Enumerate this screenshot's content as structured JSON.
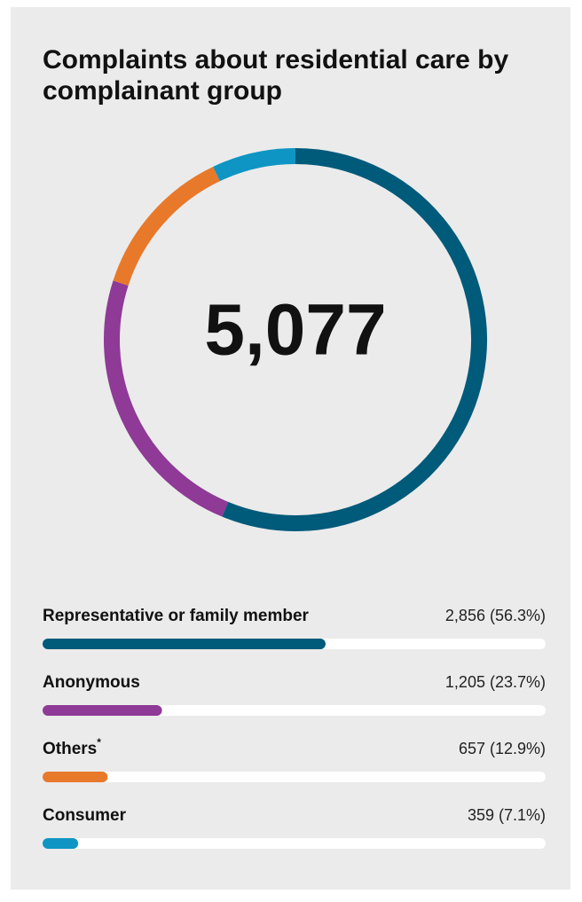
{
  "chart_data": {
    "type": "donut",
    "title": "Complaints about residential care by complainant group",
    "total": {
      "value": 5077,
      "label": "5,077"
    },
    "categories": [
      "Representative or family member",
      "Anonymous",
      "Others",
      "Consumer"
    ],
    "category_notes": [
      null,
      null,
      "*",
      null
    ],
    "values": [
      2856,
      1205,
      657,
      359
    ],
    "value_labels": [
      "2,856 (56.3%)",
      "1,205 (23.7%)",
      "657 (12.9%)",
      "359 (7.1%)"
    ],
    "colors": [
      "#005a7a",
      "#8e3a96",
      "#e8792a",
      "#0e95c4"
    ]
  }
}
